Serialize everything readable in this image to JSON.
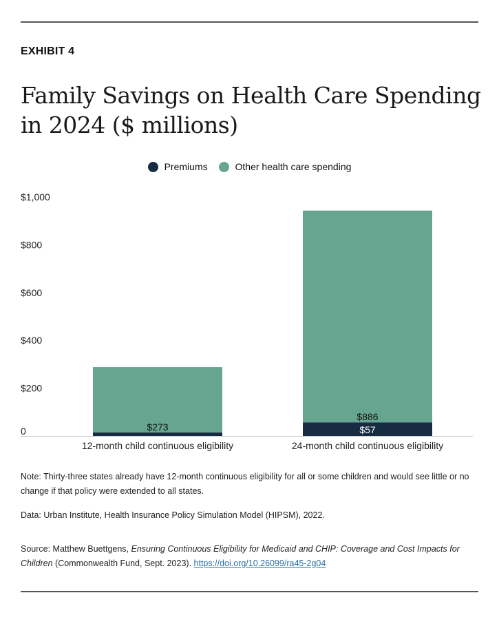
{
  "header": {
    "exhibit": "EXHIBIT 4",
    "title": "Family Savings on Health Care Spending in 2024 ($ millions)"
  },
  "chart_data": {
    "type": "bar",
    "stacked": true,
    "categories": [
      "12-month child continuous eligibility",
      "24-month child continuous eligibility"
    ],
    "series": [
      {
        "name": "Premiums",
        "color": "#172b42",
        "values": [
          15,
          57
        ],
        "labels": [
          "",
          "$57"
        ]
      },
      {
        "name": "Other health care spending",
        "color": "#66a690",
        "values": [
          273,
          886
        ],
        "labels": [
          "$273",
          "$886"
        ]
      }
    ],
    "yticks": [
      "0",
      "$200",
      "$400",
      "$600",
      "$800",
      "$1,000"
    ],
    "ytick_values": [
      0,
      200,
      400,
      600,
      800,
      1000
    ],
    "ylim": [
      0,
      1000
    ],
    "grid": false,
    "legend": "top-center"
  },
  "notes": {
    "note": "Note: Thirty-three states already have 12-month continuous eligibility for all or some children and would see little or no change if that policy were extended to all states.",
    "data": "Data: Urban Institute, Health Insurance Policy Simulation Model (HIPSM), 2022.",
    "source_prefix": "Source: Matthew Buettgens, ",
    "source_title": "Ensuring Continuous Eligibility for Medicaid and CHIP: Coverage and Cost Impacts for Children",
    "source_suffix": " (Commonwealth Fund, Sept. 2023). ",
    "source_link": "https://doi.org/10.26099/ra45-2g04"
  }
}
